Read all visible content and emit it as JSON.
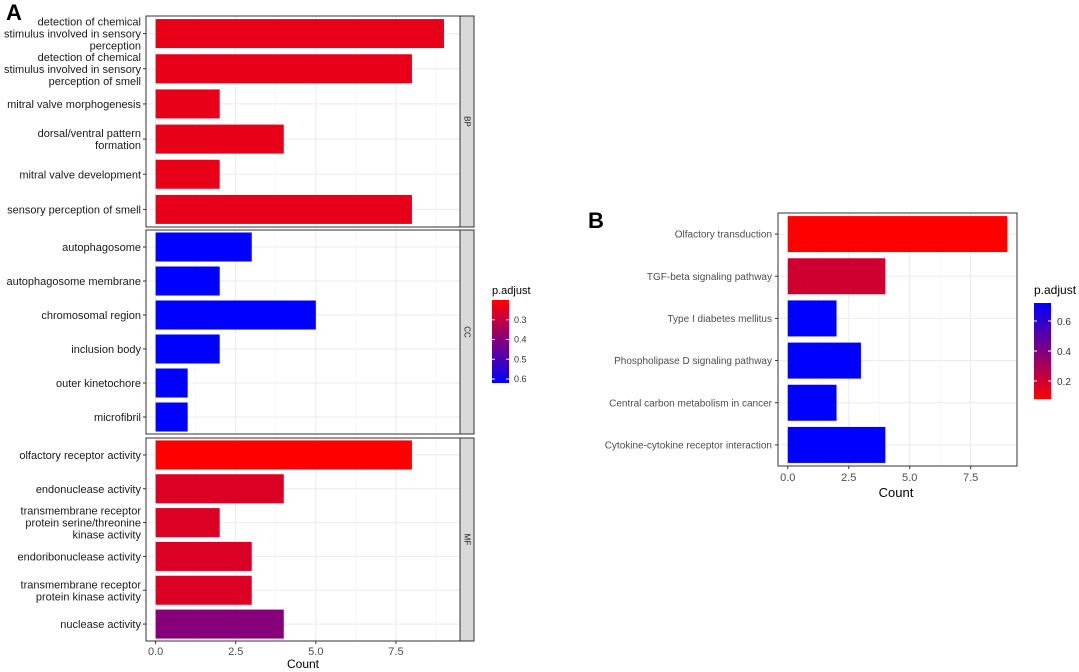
{
  "panel_labels": {
    "a": "A",
    "b": "B"
  },
  "chart_data": [
    {
      "id": "A",
      "type": "bar",
      "orientation": "horizontal",
      "xlabel": "Count",
      "xlim": [
        -0.3,
        9.5
      ],
      "xticks": [
        0,
        2.5,
        5,
        7.5
      ],
      "xtick_labels": [
        "0.0",
        "2.5",
        "5.0",
        "7.5"
      ],
      "color_scale": {
        "title": "p.adjust",
        "low_color": "#ff0000",
        "high_color": "#0000ff",
        "range": [
          0.2,
          0.62
        ],
        "ticks": [
          0.3,
          0.4,
          0.5,
          0.6
        ],
        "tick_labels": [
          "0.3",
          "0.4",
          "0.5",
          "0.6"
        ],
        "reversed": true
      },
      "facets": [
        {
          "name": "BP",
          "categories": [
            [
              "detection of chemical",
              "stimulus involved in sensory",
              "perception"
            ],
            [
              "detection of chemical",
              "stimulus involved in sensory",
              "perception of smell"
            ],
            [
              "mitral valve morphogenesis"
            ],
            [
              "dorsal/ventral pattern",
              "formation"
            ],
            [
              "mitral valve development"
            ],
            [
              "sensory perception of smell"
            ]
          ],
          "values": [
            9,
            8,
            2,
            4,
            2,
            8
          ],
          "p_adjust": [
            0.24,
            0.24,
            0.24,
            0.24,
            0.24,
            0.24
          ]
        },
        {
          "name": "CC",
          "categories": [
            [
              "autophagosome"
            ],
            [
              "autophagosome membrane"
            ],
            [
              "chromosomal region"
            ],
            [
              "inclusion body"
            ],
            [
              "outer kinetochore"
            ],
            [
              "microfibril"
            ]
          ],
          "values": [
            3,
            2,
            5,
            2,
            1,
            1
          ],
          "p_adjust": [
            0.62,
            0.62,
            0.62,
            0.62,
            0.62,
            0.62
          ]
        },
        {
          "name": "MF",
          "categories": [
            [
              "olfactory receptor activity"
            ],
            [
              "endonuclease activity"
            ],
            [
              "transmembrane receptor",
              "protein serine/threonine",
              "kinase activity"
            ],
            [
              "endoribonuclease activity"
            ],
            [
              "transmembrane receptor",
              "protein kinase activity"
            ],
            [
              "nuclease activity"
            ]
          ],
          "values": [
            8,
            4,
            2,
            3,
            3,
            4
          ],
          "p_adjust": [
            0.2,
            0.26,
            0.26,
            0.26,
            0.26,
            0.4
          ]
        }
      ]
    },
    {
      "id": "B",
      "type": "bar",
      "orientation": "horizontal",
      "xlabel": "Count",
      "xlim": [
        -0.4,
        9.4
      ],
      "xticks": [
        0,
        2.5,
        5,
        7.5
      ],
      "xtick_labels": [
        "0.0",
        "2.5",
        "5.0",
        "7.5"
      ],
      "color_scale": {
        "title": "p.adjust",
        "low_color": "#ff0000",
        "high_color": "#0000ff",
        "range": [
          0.08,
          0.72
        ],
        "ticks": [
          0.2,
          0.4,
          0.6
        ],
        "tick_labels": [
          "0.2",
          "0.4",
          "0.6"
        ],
        "reversed": false
      },
      "categories": [
        "Olfactory transduction",
        "TGF-beta signaling pathway",
        "Type I diabetes mellitus",
        "Phospholipase D signaling pathway",
        "Central carbon metabolism in cancer",
        "Cytokine-cytokine receptor interaction"
      ],
      "values": [
        9,
        4,
        2,
        3,
        2,
        4
      ],
      "p_adjust": [
        0.08,
        0.2,
        0.72,
        0.72,
        0.72,
        0.72
      ]
    }
  ]
}
